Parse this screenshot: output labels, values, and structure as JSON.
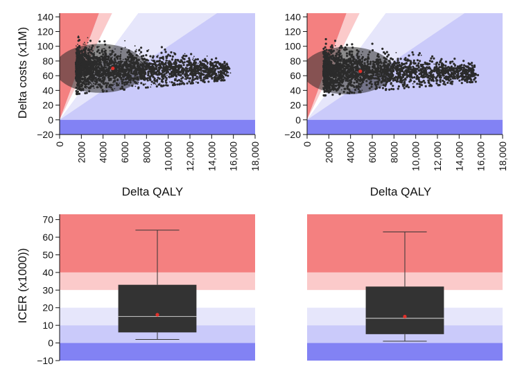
{
  "colors": {
    "red_strong": "#f48080",
    "red_light": "#fbcaca",
    "white_band": "#ffffff",
    "blue_faint": "#e6e6fb",
    "blue_light": "#cacafa",
    "blue_strong": "#8282f4",
    "points": "#2b2b2b",
    "mean_marker": "#e0302a",
    "box_fill": "#333333",
    "median_line": "#bbbbbb"
  },
  "chart_data": [
    {
      "type": "scatter",
      "panel": "top-left",
      "xlabel": "Delta QALY",
      "ylabel": "Delta costs (x1M)",
      "xlim": [
        0,
        18000
      ],
      "ylim": [
        -20,
        145
      ],
      "xticks": [
        0,
        2000,
        4000,
        6000,
        8000,
        10000,
        12000,
        14000,
        16000,
        18000
      ],
      "xtick_labels": [
        "0",
        "2000",
        "4000",
        "6000",
        "8000",
        "10,000",
        "12,000",
        "14,000",
        "16,000",
        "18,000"
      ],
      "yticks": [
        -20,
        0,
        20,
        40,
        60,
        80,
        100,
        120,
        140
      ],
      "ytick_labels": [
        "−20",
        "0",
        "20",
        "40",
        "60",
        "80",
        "100",
        "120",
        "140"
      ],
      "cloud": {
        "x_min": 1500,
        "x_max": 15500,
        "y_center": 70,
        "y_spread": 35
      },
      "mean": {
        "x": 4900,
        "y": 70
      },
      "threshold_bands_k_per_qaly": [
        40,
        30,
        20,
        10
      ]
    },
    {
      "type": "scatter",
      "panel": "top-right",
      "xlabel": "Delta QALY",
      "ylabel": "",
      "xlim": [
        0,
        18000
      ],
      "ylim": [
        -20,
        145
      ],
      "xticks": [
        0,
        2000,
        4000,
        6000,
        8000,
        10000,
        12000,
        14000,
        16000,
        18000
      ],
      "xtick_labels": [
        "0",
        "2000",
        "4000",
        "6000",
        "8000",
        "10,000",
        "12,000",
        "14,000",
        "16,000",
        "18,000"
      ],
      "yticks": [
        -20,
        0,
        20,
        40,
        60,
        80,
        100,
        120,
        140
      ],
      "ytick_labels": [
        "−20",
        "0",
        "20",
        "40",
        "60",
        "80",
        "100",
        "120",
        "140"
      ],
      "cloud": {
        "x_min": 1500,
        "x_max": 15500,
        "y_center": 67,
        "y_spread": 34
      },
      "mean": {
        "x": 4900,
        "y": 66
      },
      "threshold_bands_k_per_qaly": [
        40,
        30,
        20,
        10
      ]
    },
    {
      "type": "box",
      "panel": "bottom-left",
      "ylabel": "ICER (x1000))",
      "ylim": [
        -10,
        73
      ],
      "yticks": [
        -10,
        0,
        10,
        20,
        30,
        40,
        50,
        60,
        70
      ],
      "ytick_labels": [
        "−10",
        "0",
        "10",
        "20",
        "30",
        "40",
        "50",
        "60",
        "70"
      ],
      "whisker_low": 2,
      "q1": 6,
      "median": 15,
      "q3": 33,
      "whisker_high": 64,
      "mean": 16,
      "bands": [
        {
          "from": 40,
          "to": 73,
          "color_key": "red_strong"
        },
        {
          "from": 30,
          "to": 40,
          "color_key": "red_light"
        },
        {
          "from": 20,
          "to": 30,
          "color_key": "white_band"
        },
        {
          "from": 10,
          "to": 20,
          "color_key": "blue_faint"
        },
        {
          "from": 0,
          "to": 10,
          "color_key": "blue_light"
        },
        {
          "from": -10,
          "to": 0,
          "color_key": "blue_strong"
        }
      ]
    },
    {
      "type": "box",
      "panel": "bottom-right",
      "ylabel": "",
      "ylim": [
        -10,
        73
      ],
      "yticks": [],
      "ytick_labels": [],
      "whisker_low": 1,
      "q1": 5,
      "median": 14,
      "q3": 32,
      "whisker_high": 63,
      "mean": 15,
      "bands": [
        {
          "from": 40,
          "to": 73,
          "color_key": "red_strong"
        },
        {
          "from": 30,
          "to": 40,
          "color_key": "red_light"
        },
        {
          "from": 20,
          "to": 30,
          "color_key": "white_band"
        },
        {
          "from": 10,
          "to": 20,
          "color_key": "blue_faint"
        },
        {
          "from": 0,
          "to": 10,
          "color_key": "blue_light"
        },
        {
          "from": -10,
          "to": 0,
          "color_key": "blue_strong"
        }
      ]
    }
  ]
}
